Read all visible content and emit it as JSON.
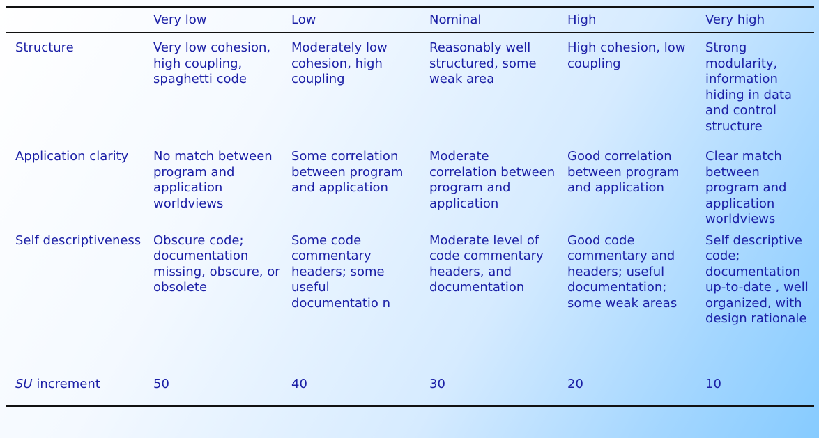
{
  "header": [
    "",
    "Very low",
    "Low",
    "Nominal",
    "High",
    "Very high"
  ],
  "rows": [
    {
      "label": "Structure",
      "cells": [
        "Very low cohesion, high coupling, spaghetti code",
        "Moderately low cohesion, high coupling",
        "Reasonably well structured, some weak area",
        "High cohesion, low coupling",
        "Strong modularity, information hiding in data and control structure"
      ]
    },
    {
      "label": "Application clarity",
      "cells": [
        "No match between program and application worldviews",
        "Some correlation between program and application",
        "Moderate correlation between program and application",
        "Good correlation between program and application",
        "Clear match between program and application worldviews"
      ]
    },
    {
      "label": "Self descriptiveness",
      "cells": [
        "Obscure code; documentation missing, obscure, or obsolete",
        "Some code commentary headers; some useful documentatio n",
        "Moderate level of code commentary headers, and documentation",
        "Good code commentary and headers; useful documentation; some weak areas",
        "Self descriptive code; documentation up-to-date , well organized, with design rationale"
      ]
    },
    {
      "label_italic": "SU",
      "label": " increment",
      "cells": [
        "50",
        "40",
        "30",
        "20",
        "10"
      ]
    }
  ]
}
